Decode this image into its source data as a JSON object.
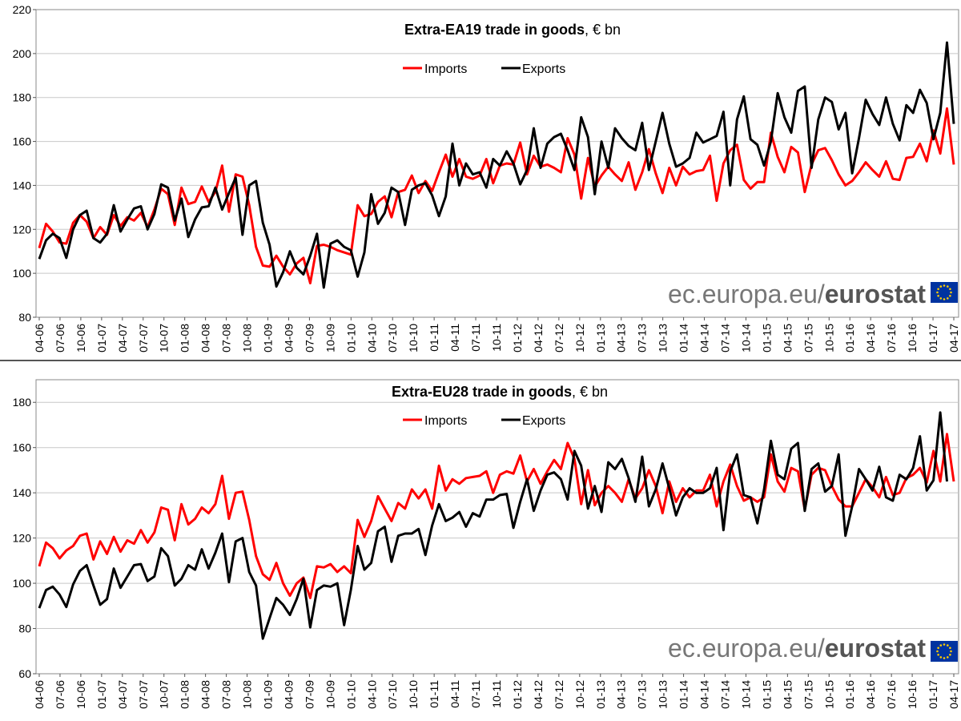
{
  "chart_data": [
    {
      "type": "line",
      "title_bold": "Extra-EA19 trade in goods",
      "title_rest": ", € bn",
      "ylim": [
        80,
        220
      ],
      "yticks": [
        80,
        100,
        120,
        140,
        160,
        180,
        200,
        220
      ],
      "grid": true,
      "legend": "top-center",
      "watermark": {
        "plain": "ec.europa.eu/",
        "bold": "eurostat"
      },
      "x_start": "2006-04",
      "x_end": "2017-04",
      "xtick_labels": [
        "04-06",
        "07-06",
        "10-06",
        "01-07",
        "04-07",
        "07-07",
        "10-07",
        "01-08",
        "04-08",
        "07-08",
        "10-08",
        "01-09",
        "04-09",
        "07-09",
        "10-09",
        "01-10",
        "04-10",
        "07-10",
        "10-10",
        "01-11",
        "04-11",
        "07-11",
        "10-11",
        "01-12",
        "04-12",
        "07-12",
        "10-12",
        "01-13",
        "04-13",
        "07-13",
        "10-13",
        "01-14",
        "04-14",
        "07-14",
        "10-14",
        "01-15",
        "04-15",
        "07-15",
        "10-15",
        "01-16",
        "04-16",
        "07-16",
        "10-16",
        "01-17",
        "04-17"
      ],
      "series": [
        {
          "name": "Imports",
          "color": "#ff0000",
          "values": [
            111.5,
            122.5,
            119.0,
            114.0,
            113.5,
            123.0,
            126.5,
            123.5,
            116.0,
            121.0,
            117.5,
            126.5,
            121.5,
            125.5,
            124.0,
            127.5,
            121.0,
            129.0,
            138.5,
            136.0,
            122.0,
            139.0,
            131.5,
            132.5,
            139.5,
            132.5,
            137.0,
            149.0,
            128.0,
            145.0,
            144.0,
            131.0,
            112.0,
            103.5,
            103.0,
            108.0,
            103.0,
            99.5,
            104.5,
            107.0,
            95.5,
            112.5,
            113.0,
            112.0,
            110.5,
            109.5,
            108.5,
            131.0,
            126.0,
            127.0,
            132.5,
            135.0,
            125.5,
            137.0,
            138.0,
            144.5,
            136.5,
            142.0,
            137.5,
            146.0,
            154.0,
            144.0,
            152.0,
            144.0,
            143.0,
            144.5,
            152.0,
            141.0,
            149.0,
            150.0,
            149.5,
            159.5,
            145.0,
            153.5,
            148.5,
            149.5,
            148.0,
            146.0,
            161.5,
            154.0,
            134.0,
            152.5,
            139.5,
            144.5,
            148.5,
            145.0,
            142.0,
            150.5,
            138.0,
            146.0,
            156.5,
            145.5,
            136.5,
            148.0,
            140.0,
            148.5,
            145.0,
            146.5,
            147.0,
            153.5,
            133.0,
            150.0,
            156.0,
            158.5,
            142.5,
            138.5,
            141.5,
            141.5,
            164.0,
            153.0,
            146.0,
            157.5,
            155.0,
            137.0,
            149.5,
            156.0,
            157.0,
            151.5,
            145.0,
            140.0,
            142.0,
            146.0,
            150.5,
            147.0,
            144.0,
            151.0,
            143.0,
            142.5,
            152.5,
            153.0,
            159.0,
            151.0,
            165.0,
            154.5,
            175.0,
            149.5
          ]
        },
        {
          "name": "Exports",
          "color": "#000000",
          "values": [
            106.5,
            115.0,
            118.0,
            116.0,
            107.0,
            120.0,
            126.5,
            128.5,
            116.0,
            114.0,
            118.0,
            131.0,
            119.0,
            124.5,
            129.5,
            130.5,
            120.0,
            127.0,
            140.5,
            139.0,
            124.0,
            134.0,
            116.5,
            124.5,
            130.0,
            130.5,
            139.0,
            129.0,
            136.5,
            143.5,
            117.5,
            140.0,
            142.0,
            123.0,
            113.0,
            94.0,
            100.5,
            110.0,
            102.5,
            99.5,
            108.0,
            118.0,
            93.5,
            113.5,
            115.0,
            112.0,
            110.5,
            98.5,
            109.5,
            136.0,
            122.5,
            127.5,
            139.0,
            137.0,
            122.0,
            138.0,
            140.0,
            141.0,
            135.5,
            126.0,
            135.0,
            159.0,
            140.0,
            150.0,
            145.0,
            146.0,
            139.0,
            152.0,
            149.0,
            155.5,
            150.0,
            140.5,
            147.0,
            166.0,
            148.0,
            159.0,
            162.0,
            163.5,
            156.0,
            147.0,
            171.0,
            162.0,
            136.0,
            160.0,
            148.0,
            166.0,
            161.5,
            158.0,
            156.0,
            168.5,
            147.0,
            160.0,
            173.0,
            159.0,
            148.5,
            150.0,
            152.5,
            164.0,
            159.5,
            161.0,
            162.5,
            173.5,
            140.0,
            170.0,
            180.5,
            161.0,
            158.5,
            149.0,
            160.0,
            182.0,
            171.0,
            164.0,
            183.0,
            185.0,
            148.0,
            170.0,
            180.0,
            178.0,
            165.5,
            173.0,
            145.5,
            161.5,
            179.0,
            172.5,
            167.5,
            180.0,
            168.0,
            160.5,
            176.5,
            173.0,
            183.5,
            177.5,
            161.0,
            173.0,
            205.0,
            168.0
          ]
        }
      ]
    },
    {
      "type": "line",
      "title_bold": "Extra-EU28 trade in goods",
      "title_rest": ", € bn",
      "ylim": [
        60,
        190
      ],
      "yticks": [
        60,
        80,
        100,
        120,
        140,
        160,
        180
      ],
      "grid": true,
      "legend": "top-center",
      "watermark": {
        "plain": "ec.europa.eu/",
        "bold": "eurostat"
      },
      "x_start": "2006-04",
      "x_end": "2017-04",
      "xtick_labels": [
        "04-06",
        "07-06",
        "10-06",
        "01-07",
        "04-07",
        "07-07",
        "10-07",
        "01-08",
        "04-08",
        "07-08",
        "10-08",
        "01-09",
        "04-09",
        "07-09",
        "10-09",
        "01-10",
        "04-10",
        "07-10",
        "10-10",
        "01-11",
        "04-11",
        "07-11",
        "10-11",
        "01-12",
        "04-12",
        "07-12",
        "10-12",
        "01-13",
        "04-13",
        "07-13",
        "10-13",
        "01-14",
        "04-14",
        "07-14",
        "10-14",
        "01-15",
        "04-15",
        "07-15",
        "10-15",
        "01-16",
        "04-16",
        "07-16",
        "10-16",
        "01-17",
        "04-17"
      ],
      "series": [
        {
          "name": "Imports",
          "color": "#ff0000",
          "values": [
            107.5,
            118.0,
            115.5,
            111.0,
            114.5,
            116.5,
            121.0,
            122.0,
            110.5,
            118.5,
            113.0,
            120.5,
            114.0,
            119.0,
            117.5,
            123.5,
            118.0,
            122.5,
            133.5,
            132.5,
            119.0,
            135.0,
            126.0,
            128.5,
            133.5,
            131.0,
            135.0,
            147.5,
            128.5,
            140.0,
            140.5,
            128.0,
            112.0,
            104.0,
            101.5,
            109.0,
            100.0,
            94.5,
            100.0,
            102.5,
            93.5,
            107.5,
            107.0,
            108.5,
            105.0,
            107.5,
            104.5,
            128.0,
            120.5,
            127.5,
            138.5,
            133.0,
            127.5,
            135.5,
            133.0,
            141.5,
            137.5,
            141.5,
            133.0,
            152.0,
            141.0,
            146.0,
            144.0,
            146.5,
            147.0,
            147.5,
            149.5,
            140.0,
            148.0,
            149.5,
            148.5,
            156.5,
            145.0,
            150.5,
            144.0,
            149.5,
            154.5,
            150.5,
            162.0,
            155.0,
            135.0,
            150.0,
            134.5,
            140.0,
            143.0,
            140.0,
            136.0,
            146.0,
            137.5,
            142.0,
            150.0,
            143.0,
            131.0,
            145.0,
            136.0,
            142.0,
            138.0,
            141.0,
            141.0,
            148.0,
            134.0,
            145.0,
            152.5,
            143.0,
            136.5,
            138.0,
            136.0,
            138.0,
            157.0,
            145.0,
            140.5,
            151.0,
            149.5,
            132.5,
            148.0,
            151.0,
            150.0,
            143.0,
            137.0,
            134.0,
            134.0,
            140.0,
            146.0,
            142.5,
            138.0,
            147.0,
            139.0,
            140.0,
            146.5,
            148.0,
            151.0,
            144.5,
            158.5,
            145.0,
            166.0,
            145.0
          ]
        },
        {
          "name": "Exports",
          "color": "#000000",
          "values": [
            89.0,
            97.0,
            98.5,
            95.0,
            89.5,
            99.5,
            105.5,
            108.0,
            99.0,
            90.5,
            93.0,
            106.5,
            98.0,
            103.0,
            108.0,
            108.5,
            101.0,
            103.0,
            115.5,
            112.0,
            99.0,
            102.0,
            108.0,
            106.0,
            115.0,
            106.5,
            113.5,
            122.0,
            100.5,
            118.5,
            120.0,
            105.0,
            99.0,
            75.5,
            84.5,
            93.5,
            90.5,
            86.0,
            93.0,
            102.0,
            80.5,
            97.0,
            99.0,
            98.5,
            100.0,
            81.5,
            97.0,
            116.5,
            106.0,
            109.0,
            123.0,
            125.0,
            109.5,
            121.0,
            122.0,
            122.0,
            124.0,
            112.5,
            125.5,
            135.0,
            127.5,
            129.0,
            131.5,
            125.0,
            131.0,
            129.5,
            137.0,
            137.0,
            139.0,
            139.5,
            124.5,
            136.0,
            146.0,
            132.0,
            141.0,
            148.0,
            149.0,
            146.0,
            137.0,
            158.5,
            152.0,
            133.0,
            143.0,
            131.5,
            153.5,
            150.5,
            155.0,
            146.5,
            136.0,
            156.0,
            134.0,
            141.5,
            153.0,
            142.0,
            130.0,
            138.0,
            142.0,
            140.0,
            140.0,
            142.0,
            151.0,
            123.5,
            149.5,
            157.0,
            139.0,
            138.0,
            126.5,
            141.5,
            163.0,
            148.0,
            146.0,
            159.5,
            162.0,
            132.0,
            150.5,
            153.0,
            140.5,
            143.0,
            157.0,
            121.0,
            134.0,
            150.5,
            146.0,
            141.0,
            151.5,
            138.0,
            136.5,
            148.0,
            146.0,
            151.0,
            165.0,
            141.0,
            145.5,
            175.5,
            145.0
          ]
        }
      ]
    }
  ]
}
